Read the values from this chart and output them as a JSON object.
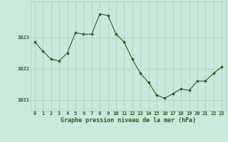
{
  "x": [
    0,
    1,
    2,
    3,
    4,
    5,
    6,
    7,
    8,
    9,
    10,
    11,
    12,
    13,
    14,
    15,
    16,
    17,
    18,
    19,
    20,
    21,
    22,
    23
  ],
  "y": [
    1022.85,
    1022.55,
    1022.3,
    1022.25,
    1022.5,
    1023.15,
    1023.1,
    1023.1,
    1023.75,
    1023.7,
    1023.1,
    1022.85,
    1022.3,
    1021.85,
    1021.55,
    1021.15,
    1021.05,
    1021.2,
    1021.35,
    1021.3,
    1021.6,
    1021.6,
    1021.85,
    1022.05
  ],
  "line_color": "#2d5a1b",
  "marker": "D",
  "marker_size": 2.0,
  "bg_color": "#cce8dc",
  "grid_color": "#aaccbb",
  "xlabel": "Graphe pression niveau de la mer (hPa)",
  "xlabel_fontsize": 6.0,
  "xlabel_color": "#2d5a1b",
  "ylabel_ticks": [
    1021,
    1022,
    1023
  ],
  "ylim": [
    1020.65,
    1024.15
  ],
  "xlim": [
    -0.5,
    23.5
  ],
  "xtick_labels": [
    "0",
    "1",
    "2",
    "3",
    "4",
    "5",
    "6",
    "7",
    "8",
    "9",
    "10",
    "11",
    "12",
    "13",
    "14",
    "15",
    "16",
    "17",
    "18",
    "19",
    "20",
    "21",
    "22",
    "23"
  ],
  "tick_color": "#2d5a1b",
  "tick_fontsize": 5.0,
  "bottom_bar_color": "#3a7a32",
  "bottom_bar_height": 0.165
}
